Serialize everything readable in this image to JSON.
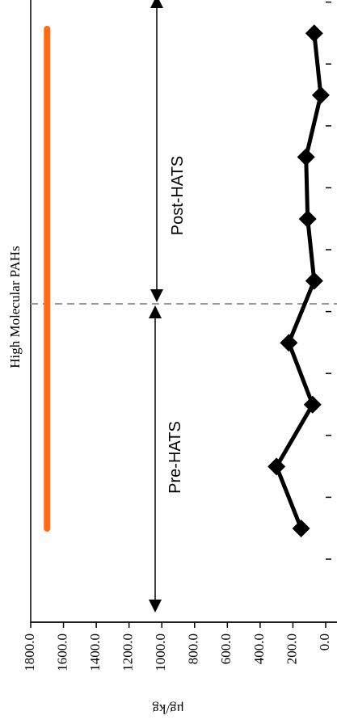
{
  "chart_data": {
    "type": "line",
    "title": "High Molecular PAHs",
    "ylabel": "μg/kg",
    "ylim": [
      0,
      1800
    ],
    "yticks": [
      "1800.0",
      "1600.0",
      "1400.0",
      "1200.0",
      "1000.0",
      "800.0",
      "600.0",
      "400.0",
      "200.0",
      "0.0"
    ],
    "ytick_values": [
      1800,
      1600,
      1400,
      1200,
      1000,
      800,
      600,
      400,
      200,
      0
    ],
    "series": [
      {
        "values": [
          150,
          300,
          80,
          225,
          70,
          110,
          120,
          30,
          70
        ],
        "color": "#000000",
        "marker": "diamond"
      }
    ],
    "reference_line": {
      "value": 1700,
      "color": "#ff6a13"
    },
    "divider_color": "#999999",
    "periods": [
      {
        "label": "Pre-HATS"
      },
      {
        "label": "Post-HATS"
      }
    ],
    "grid": false
  }
}
